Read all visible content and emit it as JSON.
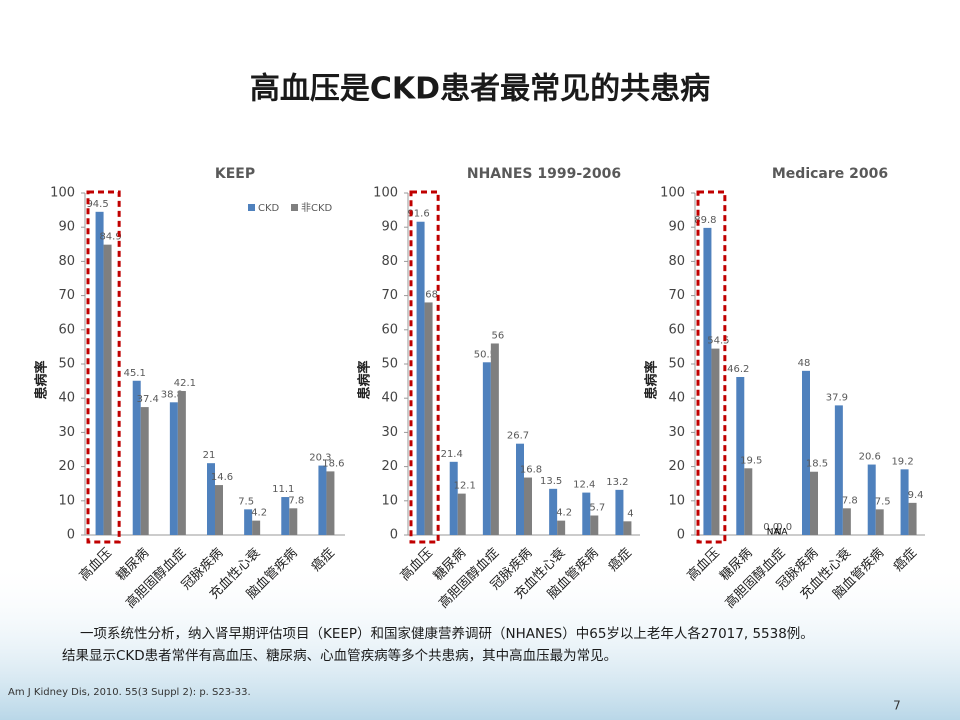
{
  "title": "高血压是CKD患者最常见的共患病",
  "notes": [
    "一项系统性分析，纳入肾早期评估项目（KEEP）和国家健康营养调研（NHANES）中65岁以上老年人各27017, 5538例。",
    "结果显示CKD患者常伴有高血压、糖尿病、心血管疾病等多个共患病，其中高血压最为常见。"
  ],
  "reference": "Am J Kidney Dis, 2010. 55(3 Suppl 2): p. S23-33.",
  "page_number": "7",
  "chart_data": [
    {
      "type": "bar",
      "title": "KEEP",
      "y_label": "患病率",
      "legend": true,
      "categories": [
        "高血压",
        "糖尿病",
        "高胆固醇血症",
        "冠脉疾病",
        "充血性心衰",
        "脑血管疾病",
        "癌症"
      ],
      "ylim": [
        0,
        100
      ],
      "yticks": [
        0,
        10,
        20,
        30,
        40,
        50,
        60,
        70,
        80,
        90,
        100
      ],
      "series": [
        {
          "name": "CKD",
          "color": "#4f81bd",
          "values": [
            94.5,
            45.1,
            38.8,
            21,
            7.5,
            11.1,
            20.3
          ]
        },
        {
          "name": "非CKD",
          "color": "#7f7f7f",
          "values": [
            84.9,
            37.4,
            42.1,
            14.6,
            4.2,
            7.8,
            18.6
          ]
        }
      ]
    },
    {
      "type": "bar",
      "title": "NHANES 1999-2006",
      "y_label": "患病率",
      "legend": false,
      "categories": [
        "高血压",
        "糖尿病",
        "高胆固醇血症",
        "冠脉疾病",
        "充血性心衰",
        "脑血管疾病",
        "癌症"
      ],
      "ylim": [
        0,
        100
      ],
      "yticks": [
        0,
        10,
        20,
        30,
        40,
        50,
        60,
        70,
        80,
        90,
        100
      ],
      "series": [
        {
          "name": "CKD",
          "color": "#4f81bd",
          "values": [
            91.6,
            21.4,
            50.5,
            26.7,
            13.5,
            12.4,
            13.2
          ]
        },
        {
          "name": "非CKD",
          "color": "#7f7f7f",
          "values": [
            68,
            12.1,
            56,
            16.8,
            4.2,
            5.7,
            4
          ]
        }
      ]
    },
    {
      "type": "bar",
      "title": "Medicare 2006",
      "y_label": "患病率",
      "legend": false,
      "categories": [
        "高血压",
        "糖尿病",
        "高胆固醇血症",
        "冠脉疾病",
        "充血性心衰",
        "脑血管疾病",
        "癌症"
      ],
      "ylim": [
        0,
        100
      ],
      "yticks": [
        0,
        10,
        20,
        30,
        40,
        50,
        60,
        70,
        80,
        90,
        100
      ],
      "series": [
        {
          "name": "CKD",
          "color": "#4f81bd",
          "values": [
            89.8,
            46.2,
            0,
            48,
            37.9,
            20.6,
            19.2
          ],
          "value_labels": [
            "89.8",
            "46.2",
            "0.0",
            "48",
            "37.9",
            "20.6",
            "19.2"
          ],
          "na_label": "NA"
        },
        {
          "name": "非CKD",
          "color": "#7f7f7f",
          "values": [
            54.5,
            19.5,
            0,
            18.5,
            7.8,
            7.5,
            9.4
          ],
          "value_labels": [
            "54.5",
            "19.5",
            "0.0",
            "18.5",
            "7.8",
            "7.5",
            "9.4"
          ],
          "na_label": "NA"
        }
      ]
    }
  ]
}
